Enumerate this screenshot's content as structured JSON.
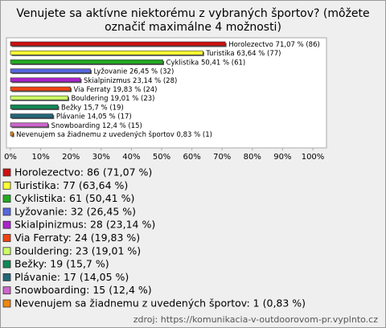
{
  "chart_data": {
    "type": "hbar",
    "title": [
      "Venujete sa aktívne niektorému z vybraných športov? (môžete",
      "označiť maximálne 4 možnosti)"
    ],
    "categories": [
      "Horolezectvo",
      "Turistika",
      "Cyklistika",
      "Lyžovanie",
      "Skialpinizmus",
      "Via Ferraty",
      "Bouldering",
      "Bežky",
      "Plávanie",
      "Snowboarding",
      "Nevenujem sa žiadnemu z uvedených športov"
    ],
    "values": [
      71.07,
      63.64,
      50.41,
      26.45,
      23.14,
      19.83,
      19.01,
      15.7,
      14.05,
      12.4,
      0.83
    ],
    "value_labels": [
      "71,07 % (86)",
      "63,64 % (77)",
      "50,41 % (61)",
      "26,45 % (32)",
      "23,14 % (28)",
      "19,83 % (24)",
      "19,01 % (23)",
      "15,7 % (19)",
      "14,05 % (17)",
      "12,4 % (15)",
      "0,83 % (1)"
    ],
    "legend_labels": [
      "Horolezectvo: 86 (71,07 %)",
      "Turistika: 77 (63,64 %)",
      "Cyklistika: 61 (50,41 %)",
      "Lyžovanie: 32 (26,45 %)",
      "Skialpinizmus: 28 (23,14 %)",
      "Via Ferraty: 24 (19,83 %)",
      "Bouldering: 23 (19,01 %)",
      "Bežky: 19 (15,7 %)",
      "Plávanie: 17 (14,05 %)",
      "Snowboarding: 15 (12,4 %)",
      "Nevenujem sa žiadnemu z uvedených športov: 1 (0,83 %)"
    ],
    "colors": [
      "#cc1111",
      "#ffff33",
      "#22aa22",
      "#5566dd",
      "#aa22cc",
      "#ee4411",
      "#ccff66",
      "#118855",
      "#226677",
      "#cc66cc",
      "#ee8811"
    ],
    "xlim": [
      0,
      100
    ],
    "xticks": [
      {
        "value": 0,
        "label": "0%"
      },
      {
        "value": 10,
        "label": "10%"
      },
      {
        "value": 20,
        "label": "20%"
      },
      {
        "value": 30,
        "label": "30%"
      },
      {
        "value": 40,
        "label": "40%"
      },
      {
        "value": 50,
        "label": "50%"
      },
      {
        "value": 60,
        "label": "60%"
      },
      {
        "value": 70,
        "label": "70%"
      },
      {
        "value": 80,
        "label": "80%"
      },
      {
        "value": 90,
        "label": "90%"
      },
      {
        "value": 100,
        "label": "100%"
      }
    ],
    "grid": false,
    "source": "zdroj: https://komunikacia-v-outdoorovom-pr.vyplnto.cz"
  }
}
